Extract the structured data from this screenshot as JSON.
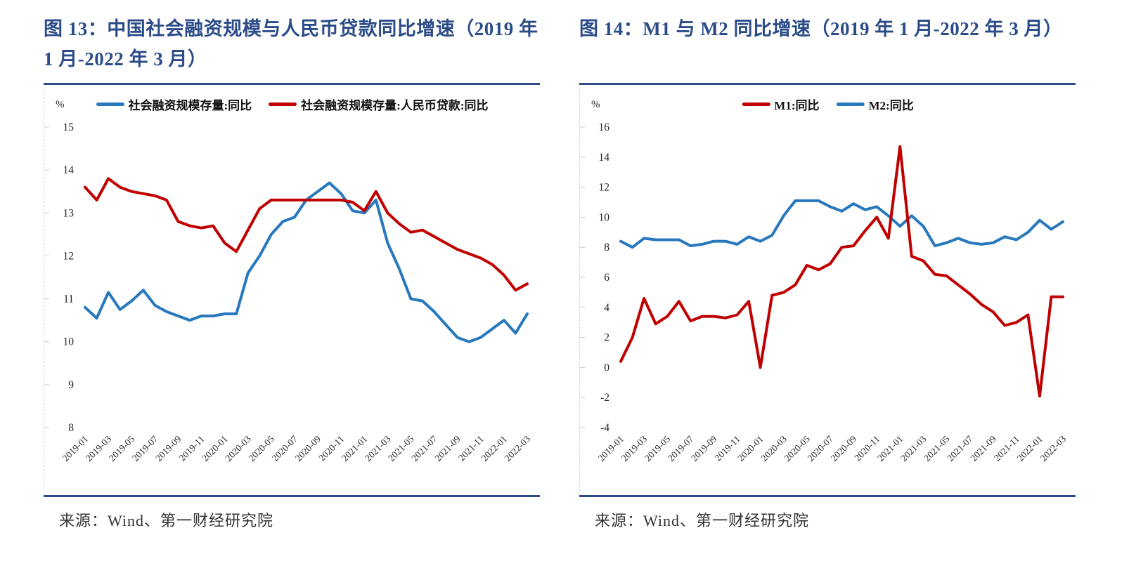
{
  "panels": [
    {
      "figure_title": "图 13：中国社会融资规模与人民币贷款同比增速（2019 年 1 月-2022 年 3 月）",
      "unit_label": "%",
      "source": "来源：Wind、第一财经研究院"
    },
    {
      "figure_title": "图 14：M1 与 M2 同比增速（2019 年 1 月-2022 年 3 月）",
      "unit_label": "%",
      "source": "来源：Wind、第一财经研究院"
    }
  ],
  "colors": {
    "title_navy": "#2B4C88",
    "rule_blue": "#2B4C88",
    "line_blue": "#2878BE",
    "line_red": "#C00000",
    "axis_text": "#262626",
    "dotted_axis": "#c9c9c9"
  },
  "chart_data": [
    {
      "type": "line",
      "title": "中国社会融资规模与人民币贷款同比增速（2019 年 1 月-2022 年 3 月）",
      "xlabel": "",
      "ylabel": "%",
      "ylim": [
        8,
        15
      ],
      "ytick_step": 1,
      "x_tick_every": 2,
      "grid": false,
      "legend_position": "top",
      "x": [
        "2019-01",
        "2019-02",
        "2019-03",
        "2019-04",
        "2019-05",
        "2019-06",
        "2019-07",
        "2019-08",
        "2019-09",
        "2019-10",
        "2019-11",
        "2019-12",
        "2020-01",
        "2020-02",
        "2020-03",
        "2020-04",
        "2020-05",
        "2020-06",
        "2020-07",
        "2020-08",
        "2020-09",
        "2020-10",
        "2020-11",
        "2020-12",
        "2021-01",
        "2021-02",
        "2021-03",
        "2021-04",
        "2021-05",
        "2021-06",
        "2021-07",
        "2021-08",
        "2021-09",
        "2021-10",
        "2021-11",
        "2021-12",
        "2022-01",
        "2022-02",
        "2022-03"
      ],
      "series": [
        {
          "name": "社会融资规模存量:同比",
          "color": "#2878BE",
          "z": 0,
          "values": [
            10.8,
            10.55,
            11.15,
            10.75,
            10.95,
            11.2,
            10.85,
            10.7,
            10.6,
            10.5,
            10.6,
            10.6,
            10.65,
            10.65,
            11.6,
            12.0,
            12.5,
            12.8,
            12.9,
            13.3,
            13.5,
            13.7,
            13.45,
            13.05,
            13.0,
            13.3,
            12.3,
            11.7,
            11.0,
            10.95,
            10.7,
            10.4,
            10.1,
            10.0,
            10.1,
            10.3,
            10.5,
            10.2,
            10.65
          ]
        },
        {
          "name": "社会融资规模存量:人民币贷款:同比",
          "color": "#C00000",
          "z": 1,
          "values": [
            13.6,
            13.3,
            13.8,
            13.6,
            13.5,
            13.45,
            13.4,
            13.3,
            12.8,
            12.7,
            12.65,
            12.7,
            12.3,
            12.1,
            12.6,
            13.1,
            13.3,
            13.3,
            13.3,
            13.3,
            13.3,
            13.3,
            13.3,
            13.25,
            13.05,
            13.5,
            13.0,
            12.75,
            12.55,
            12.6,
            12.45,
            12.3,
            12.15,
            12.05,
            11.95,
            11.8,
            11.55,
            11.2,
            11.35
          ]
        }
      ]
    },
    {
      "type": "line",
      "title": "M1 与 M2 同比增速（2019 年 1 月-2022 年 3 月）",
      "xlabel": "",
      "ylabel": "%",
      "ylim": [
        -4,
        16
      ],
      "ytick_step": 2,
      "x_tick_every": 2,
      "grid": false,
      "legend_position": "top",
      "x": [
        "2019-01",
        "2019-02",
        "2019-03",
        "2019-04",
        "2019-05",
        "2019-06",
        "2019-07",
        "2019-08",
        "2019-09",
        "2019-10",
        "2019-11",
        "2019-12",
        "2020-01",
        "2020-02",
        "2020-03",
        "2020-04",
        "2020-05",
        "2020-06",
        "2020-07",
        "2020-08",
        "2020-09",
        "2020-10",
        "2020-11",
        "2020-12",
        "2021-01",
        "2021-02",
        "2021-03",
        "2021-04",
        "2021-05",
        "2021-06",
        "2021-07",
        "2021-08",
        "2021-09",
        "2021-10",
        "2021-11",
        "2021-12",
        "2022-01",
        "2022-02",
        "2022-03"
      ],
      "series": [
        {
          "name": "M1:同比",
          "color": "#C00000",
          "z": 1,
          "values": [
            0.4,
            2.0,
            4.6,
            2.9,
            3.4,
            4.4,
            3.1,
            3.4,
            3.4,
            3.3,
            3.5,
            4.4,
            0.0,
            4.8,
            5.0,
            5.5,
            6.8,
            6.5,
            6.9,
            8.0,
            8.1,
            9.1,
            10.0,
            8.6,
            14.7,
            7.4,
            7.1,
            6.2,
            6.1,
            5.5,
            4.9,
            4.2,
            3.7,
            2.8,
            3.0,
            3.5,
            -1.9,
            4.7,
            4.7
          ]
        },
        {
          "name": "M2:同比",
          "color": "#2878BE",
          "z": 0,
          "values": [
            8.4,
            8.0,
            8.6,
            8.5,
            8.5,
            8.5,
            8.1,
            8.2,
            8.4,
            8.4,
            8.2,
            8.7,
            8.4,
            8.8,
            10.1,
            11.1,
            11.1,
            11.1,
            10.7,
            10.4,
            10.9,
            10.5,
            10.7,
            10.1,
            9.4,
            10.1,
            9.4,
            8.1,
            8.3,
            8.6,
            8.3,
            8.2,
            8.3,
            8.7,
            8.5,
            9.0,
            9.8,
            9.2,
            9.7
          ]
        }
      ]
    }
  ]
}
